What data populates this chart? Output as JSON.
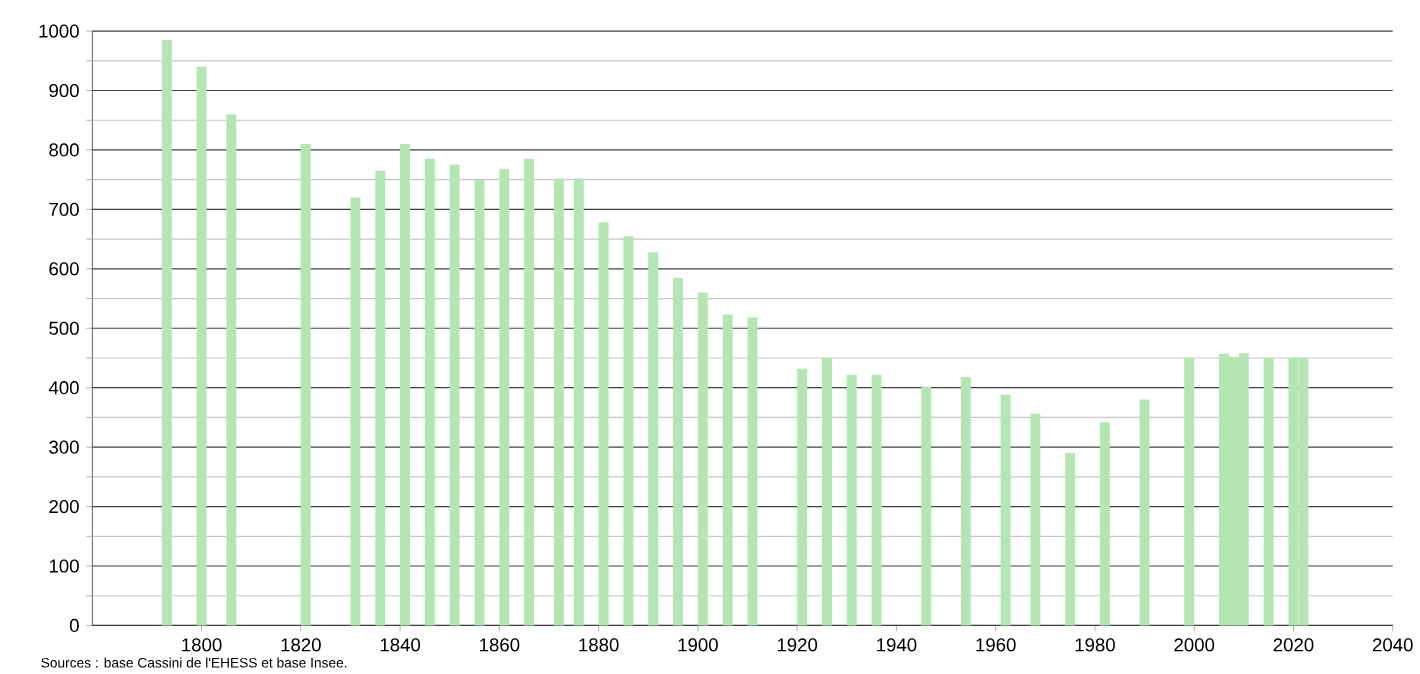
{
  "chart_data": {
    "type": "bar",
    "x": [
      1793,
      1800,
      1806,
      1821,
      1831,
      1836,
      1841,
      1846,
      1851,
      1856,
      1861,
      1866,
      1872,
      1876,
      1881,
      1886,
      1891,
      1896,
      1901,
      1906,
      1911,
      1921,
      1926,
      1931,
      1936,
      1946,
      1954,
      1962,
      1968,
      1975,
      1982,
      1990,
      1999,
      2006,
      2008,
      2010,
      2015,
      2020,
      2022
    ],
    "values": [
      985,
      940,
      860,
      810,
      720,
      765,
      810,
      785,
      775,
      750,
      768,
      785,
      752,
      752,
      678,
      655,
      628,
      585,
      560,
      523,
      518,
      432,
      450,
      422,
      422,
      402,
      418,
      388,
      356,
      290,
      342,
      380,
      450,
      457,
      452,
      458,
      450,
      450,
      450
    ],
    "color": "#b3e6b3",
    "xlim": [
      1778,
      2040
    ],
    "xticks": [
      1800,
      1820,
      1840,
      1860,
      1880,
      1900,
      1920,
      1940,
      1960,
      1980,
      2000,
      2020,
      2040
    ],
    "ylim": [
      0,
      1000
    ],
    "yticks": [
      0,
      {
        "value": 50,
        "label": null
      },
      100,
      {
        "value": 150,
        "label": null
      },
      200,
      {
        "value": 250,
        "label": null
      },
      300,
      {
        "value": 350,
        "label": null
      },
      400,
      {
        "value": 450,
        "label": null
      },
      500,
      {
        "value": 550,
        "label": null
      },
      600,
      {
        "value": 650,
        "label": null
      },
      700,
      {
        "value": 750,
        "label": null
      },
      800,
      {
        "value": 850,
        "label": null
      },
      900,
      {
        "value": 950,
        "label": null
      },
      1000
    ],
    "grid": "y",
    "annotations": [
      "Sources : base Cassini de l'EHESS et base Insee."
    ]
  }
}
